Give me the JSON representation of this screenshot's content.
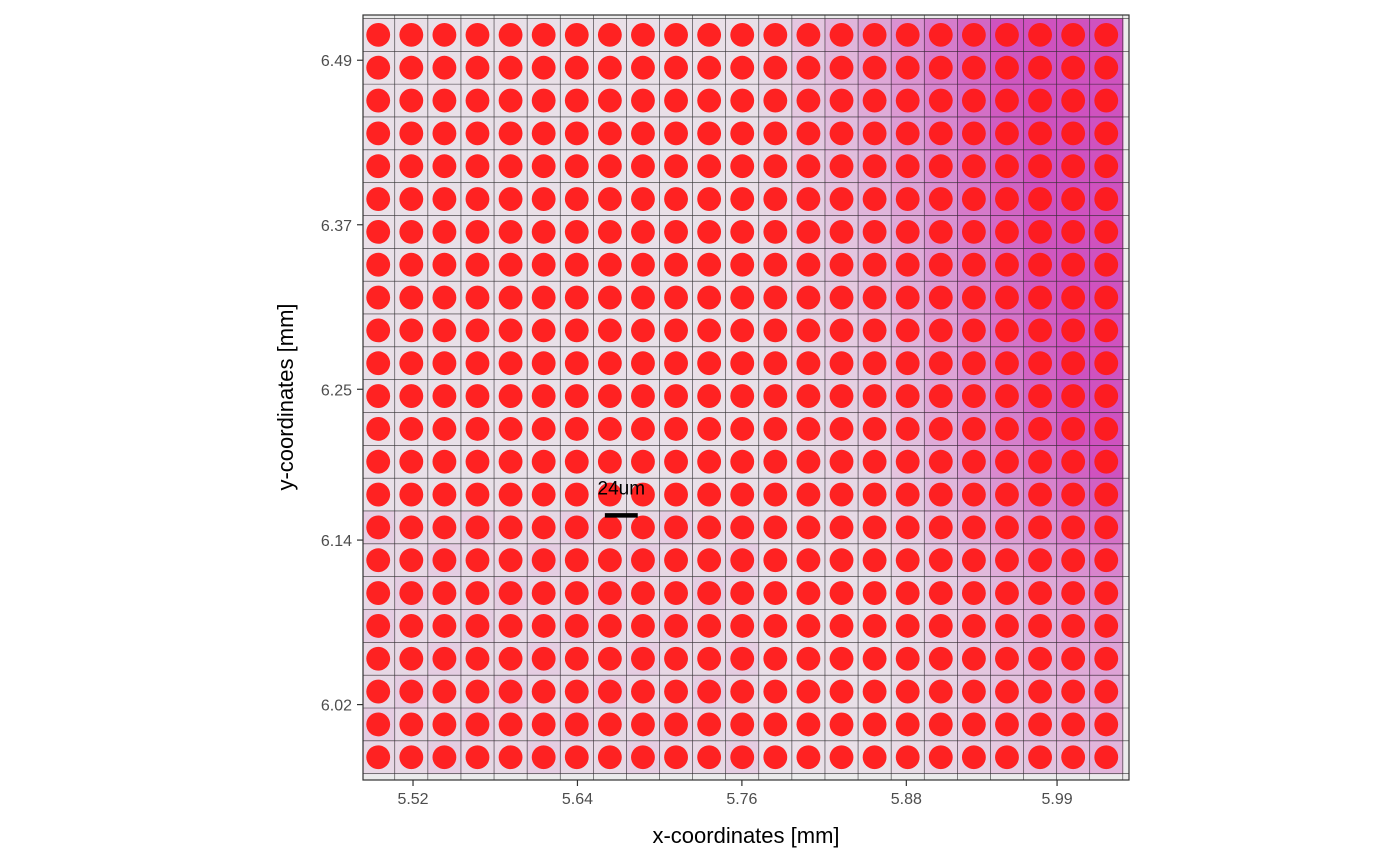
{
  "chart_data": {
    "type": "scatter",
    "title": "",
    "xlabel": "x-coordinates [mm]",
    "ylabel": "y-coordinates [mm]",
    "x_ticks": [
      5.52,
      5.64,
      5.76,
      5.88,
      5.99
    ],
    "y_ticks": [
      6.49,
      6.37,
      6.25,
      6.14,
      6.02
    ],
    "x_tick_labels": [
      "5.52",
      "5.64",
      "5.76",
      "5.88",
      "5.99"
    ],
    "y_tick_labels": [
      "6.49",
      "6.37",
      "6.25",
      "6.14",
      "6.02"
    ],
    "xlim": [
      5.4835,
      6.0425
    ],
    "ylim": [
      5.965,
      6.523
    ],
    "grid": true,
    "legend": "none",
    "spots": {
      "x_start": 5.4946,
      "x_step": 0.02415,
      "columns": 23,
      "y_start": 6.5085,
      "y_step": -0.02395,
      "rows": 23,
      "color": "#ff1a1a",
      "radius_mm": 0.0087
    },
    "overlay": {
      "color": "#c830b4",
      "description_levels": "tissue intensity"
    },
    "scale_bar": {
      "label": "24um",
      "length_mm": 0.024,
      "x_center": 5.672,
      "y": 6.158
    },
    "colors": {
      "background": "#ebebeb",
      "grid": "#333333",
      "spot": "#ff1a1a",
      "overlay": "#c830b4",
      "border": "#333333"
    }
  }
}
